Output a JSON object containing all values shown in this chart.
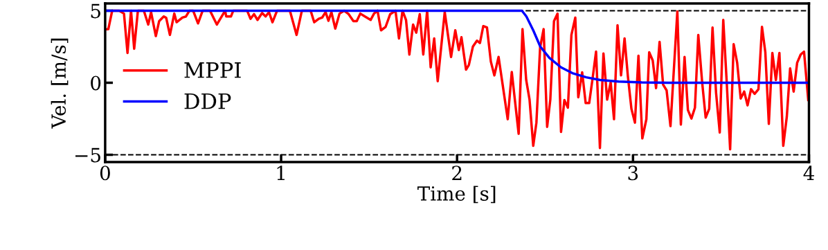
{
  "chart_data": {
    "type": "line",
    "xlabel": "Time [s]",
    "ylabel": "Vel. [m/s]",
    "xlim": [
      0,
      4
    ],
    "ylim": [
      -5.5,
      5.5
    ],
    "xticks": [
      0,
      1,
      2,
      3,
      4
    ],
    "yticks": [
      {
        "value": -5,
        "label": "−5"
      },
      0,
      5
    ],
    "grid": false,
    "legend": "left",
    "marker": "none",
    "line_style": "solid",
    "ref_lines": [
      {
        "axis": "y",
        "value": 5,
        "color": "#000000",
        "line_style": "dashed"
      },
      {
        "axis": "y",
        "value": -5,
        "color": "#000000",
        "line_style": "dashed"
      }
    ],
    "series": [
      {
        "name": "MPPI",
        "color": "#ff0000",
        "x": [
          0.0,
          0.018,
          0.04,
          0.08,
          0.107,
          0.127,
          0.147,
          0.165,
          0.186,
          0.22,
          0.245,
          0.261,
          0.288,
          0.307,
          0.333,
          0.347,
          0.368,
          0.393,
          0.406,
          0.439,
          0.459,
          0.479,
          0.5,
          0.528,
          0.554,
          0.596,
          0.635,
          0.662,
          0.682,
          0.688,
          0.715,
          0.728,
          0.807,
          0.826,
          0.846,
          0.866,
          0.892,
          0.912,
          0.931,
          0.951,
          0.977,
          1.05,
          1.088,
          1.118,
          1.168,
          1.188,
          1.214,
          1.233,
          1.253,
          1.269,
          1.286,
          1.308,
          1.332,
          1.358,
          1.384,
          1.411,
          1.43,
          1.45,
          1.476,
          1.509,
          1.528,
          1.548,
          1.568,
          1.594,
          1.62,
          1.65,
          1.67,
          1.69,
          1.71,
          1.729,
          1.75,
          1.768,
          1.788,
          1.808,
          1.83,
          1.85,
          1.87,
          1.89,
          1.93,
          1.966,
          1.99,
          2.01,
          2.025,
          2.051,
          2.067,
          2.09,
          2.113,
          2.13,
          2.149,
          2.17,
          2.192,
          2.212,
          2.236,
          2.288,
          2.311,
          2.35,
          2.372,
          2.393,
          2.412,
          2.433,
          2.451,
          2.472,
          2.492,
          2.512,
          2.53,
          2.551,
          2.571,
          2.591,
          2.61,
          2.63,
          2.65,
          2.672,
          2.689,
          2.711,
          2.731,
          2.751,
          2.77,
          2.79,
          2.812,
          2.832,
          2.853,
          2.873,
          2.892,
          2.912,
          2.932,
          2.952,
          2.971,
          2.991,
          3.011,
          3.031,
          3.053,
          3.076,
          3.092,
          3.112,
          3.131,
          3.151,
          3.171,
          3.191,
          3.213,
          3.252,
          3.272,
          3.293,
          3.312,
          3.332,
          3.352,
          3.371,
          3.393,
          3.413,
          3.433,
          3.452,
          3.472,
          3.493,
          3.513,
          3.533,
          3.552,
          3.572,
          3.592,
          3.612,
          3.632,
          3.651,
          3.671,
          3.691,
          3.713,
          3.733,
          3.752,
          3.772,
          3.792,
          3.812,
          3.832,
          3.854,
          3.874,
          3.893,
          3.913,
          3.933,
          3.953,
          3.972,
          3.996
        ],
        "values": [
          3.7,
          3.72,
          5,
          5,
          4.8,
          2.07,
          5,
          2.36,
          5,
          5,
          4.04,
          4.9,
          3.24,
          4.28,
          4.6,
          4.5,
          3.32,
          4.8,
          4.2,
          4.52,
          4.6,
          5,
          5,
          4.12,
          5,
          5,
          4.04,
          4.6,
          5,
          4.6,
          4.6,
          5,
          5,
          4.44,
          4.76,
          4.36,
          4.84,
          4.6,
          4.9,
          4.2,
          5,
          5,
          3.32,
          5,
          5,
          4.2,
          4.44,
          4.52,
          4.9,
          4.3,
          4.9,
          3.76,
          4.8,
          5,
          4.76,
          4.28,
          4.28,
          4.8,
          4.6,
          4.36,
          4.8,
          5,
          3.64,
          3.88,
          4.76,
          5,
          3.08,
          5,
          4.36,
          1.96,
          4.04,
          3.48,
          4.76,
          1.96,
          5,
          1.07,
          3.08,
          0.11,
          4.9,
          1.79,
          3.64,
          2.27,
          3.16,
          0.91,
          1.23,
          2.51,
          2.92,
          2.76,
          3.93,
          3.84,
          1.47,
          0.51,
          1.79,
          -2.53,
          0.75,
          -3.54,
          3.72,
          0.19,
          -1.17,
          -4.38,
          -2.77,
          2.44,
          3.72,
          -3.06,
          -1.17,
          4.28,
          4.79,
          -3.41,
          -1.2,
          -1.73,
          3.32,
          4.52,
          -1.01,
          0.72,
          -1.41,
          -1.41,
          0.27,
          2.16,
          -4.53,
          2.03,
          -1.17,
          0.03,
          -2.53,
          3.99,
          0.51,
          3.08,
          0.43,
          -1.81,
          -2.77,
          1.88,
          -3.86,
          -2.53,
          2.12,
          1.55,
          -0.37,
          2.84,
          -0.13,
          -0.53,
          -3.01,
          4.95,
          -2.9,
          1.79,
          -1.89,
          -2.48,
          -1.73,
          3.32,
          0.03,
          -2.42,
          -1.81,
          3.83,
          -0.69,
          -3.45,
          4.36,
          -0.05,
          -4.62,
          2.68,
          1.39,
          -1.09,
          -0.61,
          -1.57,
          -0.45,
          -0.77,
          -0.45,
          3.88,
          2.12,
          -2.85,
          2.07,
          0.19,
          2.07,
          -4.38,
          -2.37,
          1.0,
          -0.61,
          1.39,
          1.96,
          2.16,
          -1.2
        ]
      },
      {
        "name": "DDP",
        "color": "#0000ff",
        "x": [
          0,
          2.369,
          2.394,
          2.433,
          2.473,
          2.525,
          2.591,
          2.655,
          2.734,
          2.813,
          2.918,
          3.05,
          3.2,
          4
        ],
        "values": [
          5,
          5,
          4.6,
          3.64,
          2.51,
          1.72,
          1.07,
          0.67,
          0.38,
          0.19,
          0.08,
          0.02,
          0,
          0
        ]
      }
    ]
  }
}
